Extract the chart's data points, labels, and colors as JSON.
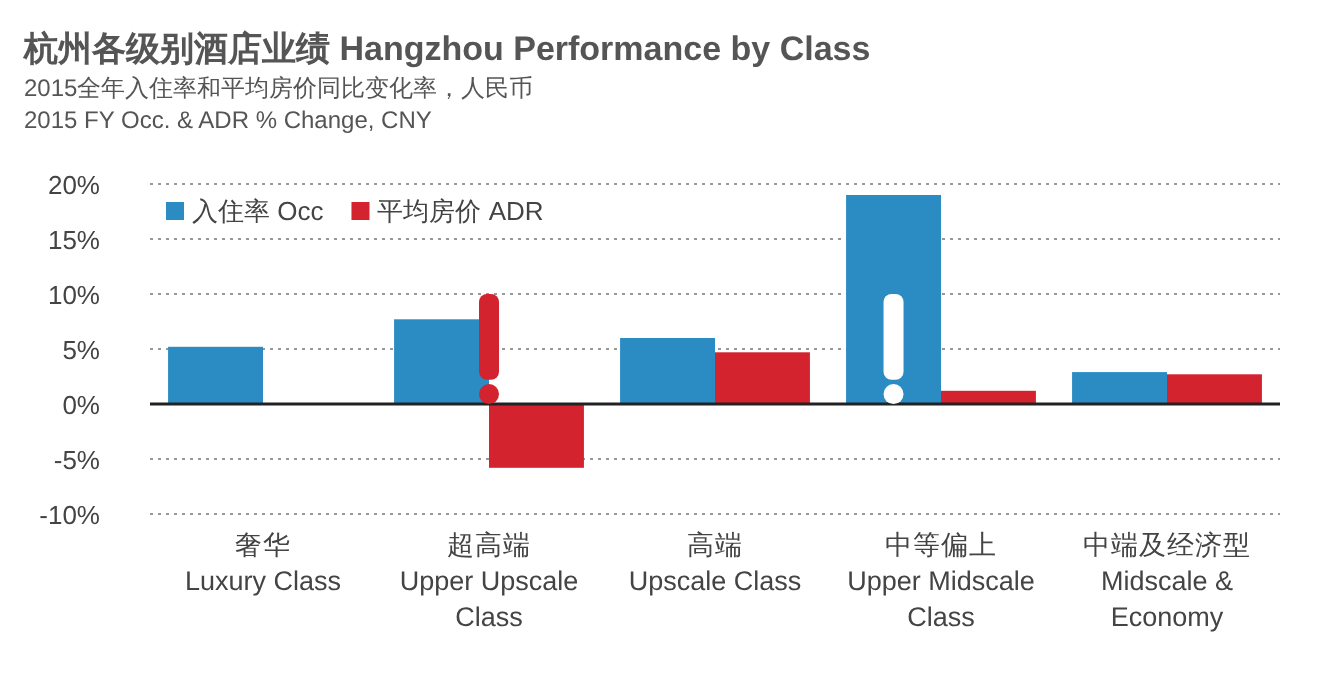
{
  "chart_data": {
    "type": "bar",
    "title": "杭州各级别酒店业绩 Hangzhou Performance by Class",
    "subtitle": "2015全年入住率和平均房价同比变化率，人民币\n2015 FY Occ. & ADR % Change, CNY",
    "categories": [
      "奢华\nLuxury Class",
      "超高端\nUpper Upscale\nClass",
      "高端\nUpscale Class",
      "中等偏上\nUpper Midscale\nClass",
      "中端及经济型\nMidscale &\nEconomy"
    ],
    "series": [
      {
        "name": "入住率 Occ",
        "color": "#2b8cc4",
        "values": [
          5.2,
          7.7,
          6.0,
          19.0,
          2.9
        ]
      },
      {
        "name": "平均房价 ADR",
        "color": "#d2232e",
        "values": [
          null,
          -5.8,
          4.7,
          1.2,
          2.7
        ]
      }
    ],
    "ylim": [
      -10,
      20
    ],
    "yticks": [
      {
        "value": -10,
        "label": "-10%"
      },
      {
        "value": -5,
        "label": "-5%"
      },
      {
        "value": 0,
        "label": "0%"
      },
      {
        "value": 5,
        "label": "5%"
      },
      {
        "value": 10,
        "label": "10%"
      },
      {
        "value": 15,
        "label": "15%"
      },
      {
        "value": 20,
        "label": "20%"
      }
    ],
    "grid": "y",
    "legend": "top left"
  }
}
